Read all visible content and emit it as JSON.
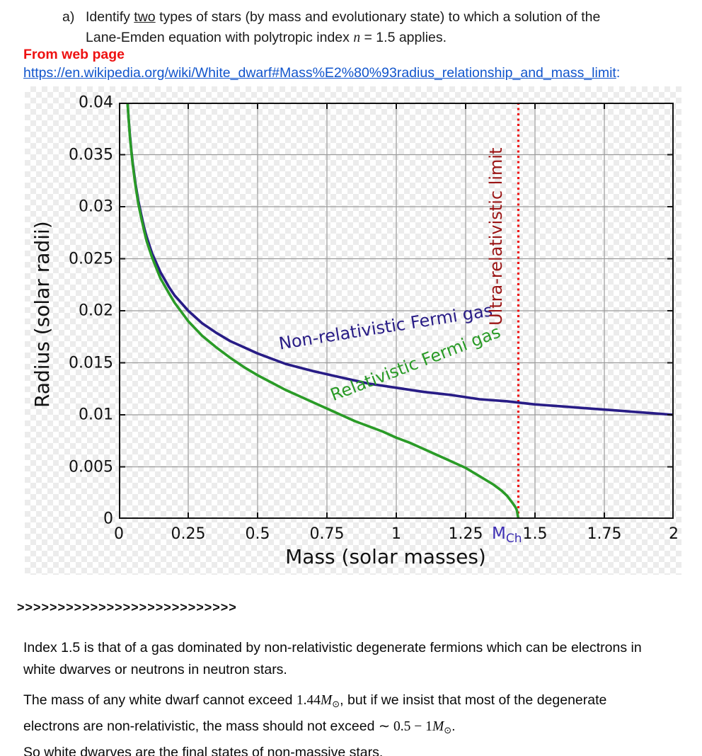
{
  "question": {
    "label": "a)",
    "line1_pre": "Identify ",
    "line1_two": "two",
    "line1_post": " types of stars (by mass and evolutionary state) to which a solution of the",
    "line2_pre": "Lane-Emden equation with polytropic index ",
    "line2_n": "n",
    "line2_post": " = 1.5 applies."
  },
  "source": {
    "label": "From web page",
    "link_text": "https://en.wikipedia.org/wiki/White_dwarf#Mass%E2%80%93radius_relationship_and_mass_limit",
    "colon": ":"
  },
  "chart_data": {
    "type": "line",
    "title": "",
    "xlabel": "Mass (solar masses)",
    "ylabel": "Radius (solar radii)",
    "xlim": [
      0,
      2
    ],
    "ylim": [
      0,
      0.04
    ],
    "xticks": [
      "0",
      "0.25",
      "0.5",
      "0.75",
      "1",
      "1.25",
      "1.5",
      "1.75",
      "2"
    ],
    "xtick_values": [
      0,
      0.25,
      0.5,
      0.75,
      1,
      1.25,
      1.5,
      1.75,
      2
    ],
    "yticks": [
      "0",
      "0.005",
      "0.01",
      "0.015",
      "0.02",
      "0.025",
      "0.03",
      "0.035",
      "0.04"
    ],
    "ytick_values": [
      0,
      0.005,
      0.01,
      0.015,
      0.02,
      0.025,
      0.03,
      0.035,
      0.04
    ],
    "grid": true,
    "grid_color": "#9b9b9b",
    "frame_color": "#111111",
    "background": "transparent-checkerboard",
    "series": [
      {
        "name": "Non-relativistic Fermi gas",
        "color": "#281c86",
        "points": [
          [
            0.031,
            0.0401
          ],
          [
            0.035,
            0.0385
          ],
          [
            0.04,
            0.0368
          ],
          [
            0.045,
            0.0354
          ],
          [
            0.05,
            0.0342
          ],
          [
            0.06,
            0.0322
          ],
          [
            0.07,
            0.0306
          ],
          [
            0.08,
            0.0293
          ],
          [
            0.09,
            0.0281
          ],
          [
            0.1,
            0.0271
          ],
          [
            0.12,
            0.0255
          ],
          [
            0.15,
            0.0237
          ],
          [
            0.18,
            0.0223
          ],
          [
            0.2,
            0.0215
          ],
          [
            0.25,
            0.02
          ],
          [
            0.3,
            0.0188
          ],
          [
            0.35,
            0.0179
          ],
          [
            0.4,
            0.0171
          ],
          [
            0.5,
            0.0159
          ],
          [
            0.6,
            0.0149
          ],
          [
            0.7,
            0.0142
          ],
          [
            0.8,
            0.0136
          ],
          [
            0.9,
            0.013
          ],
          [
            1.0,
            0.0126
          ],
          [
            1.1,
            0.0122
          ],
          [
            1.2,
            0.0119
          ],
          [
            1.3,
            0.0115
          ],
          [
            1.4,
            0.0113
          ],
          [
            1.5,
            0.011
          ],
          [
            1.6,
            0.0108
          ],
          [
            1.7,
            0.0106
          ],
          [
            1.8,
            0.0104
          ],
          [
            1.9,
            0.0102
          ],
          [
            2.0,
            0.01
          ]
        ]
      },
      {
        "name": "Relativistic Fermi gas",
        "color": "#2a9b27",
        "points": [
          [
            0.03,
            0.0404
          ],
          [
            0.035,
            0.0385
          ],
          [
            0.04,
            0.0366
          ],
          [
            0.05,
            0.034
          ],
          [
            0.06,
            0.032
          ],
          [
            0.07,
            0.0303
          ],
          [
            0.08,
            0.029
          ],
          [
            0.09,
            0.0278
          ],
          [
            0.1,
            0.0267
          ],
          [
            0.12,
            0.0251
          ],
          [
            0.15,
            0.0231
          ],
          [
            0.18,
            0.0217
          ],
          [
            0.2,
            0.0208
          ],
          [
            0.25,
            0.019
          ],
          [
            0.3,
            0.0176
          ],
          [
            0.35,
            0.0165
          ],
          [
            0.4,
            0.0155
          ],
          [
            0.45,
            0.0146
          ],
          [
            0.5,
            0.0138
          ],
          [
            0.55,
            0.0131
          ],
          [
            0.6,
            0.0124
          ],
          [
            0.65,
            0.0118
          ],
          [
            0.7,
            0.0112
          ],
          [
            0.75,
            0.0106
          ],
          [
            0.8,
            0.01
          ],
          [
            0.85,
            0.0094
          ],
          [
            0.9,
            0.0089
          ],
          [
            0.95,
            0.0084
          ],
          [
            1.0,
            0.0078
          ],
          [
            1.05,
            0.0073
          ],
          [
            1.1,
            0.0067
          ],
          [
            1.15,
            0.0061
          ],
          [
            1.2,
            0.0055
          ],
          [
            1.25,
            0.0049
          ],
          [
            1.3,
            0.0041
          ],
          [
            1.35,
            0.0033
          ],
          [
            1.38,
            0.0027
          ],
          [
            1.4,
            0.0022
          ],
          [
            1.42,
            0.0015
          ],
          [
            1.43,
            0.0011
          ],
          [
            1.435,
            0.0008
          ],
          [
            1.44,
            0.0
          ]
        ]
      }
    ],
    "vline": {
      "x": 1.44,
      "color": "#ee1111",
      "style": "dotted",
      "label": "Ultra-relativistic limit",
      "label_color": "#9b1515"
    },
    "x_annotation": {
      "main": "M",
      "sub": "Ch",
      "x": 1.44,
      "color": "#3d2eb3"
    },
    "legend_position": "none"
  },
  "separator": ">>>>>>>>>>>>>>>>>>>>>>>>>>>",
  "paragraphs": {
    "index15": {
      "line1": "Index 1.5 is that of a gas dominated by non-relativistic degenerate fermions which can be electrons in",
      "line2": "white dwarves or neutrons in neutron stars."
    },
    "mass_limit": {
      "line1_pre": "The mass of any white dwarf cannot exceed ",
      "line1_math": "1.44",
      "msun_m": "M",
      "msun_sym": "⊙",
      "line1_post": ", but if we insist that most of the degenerate",
      "line2_pre": "electrons are non-relativistic, the mass should not exceed ",
      "line2_math": "∼ 0.5 − 1",
      "line2_post": ".",
      "line3": "So white dwarves are the final states of non-massive stars."
    }
  }
}
